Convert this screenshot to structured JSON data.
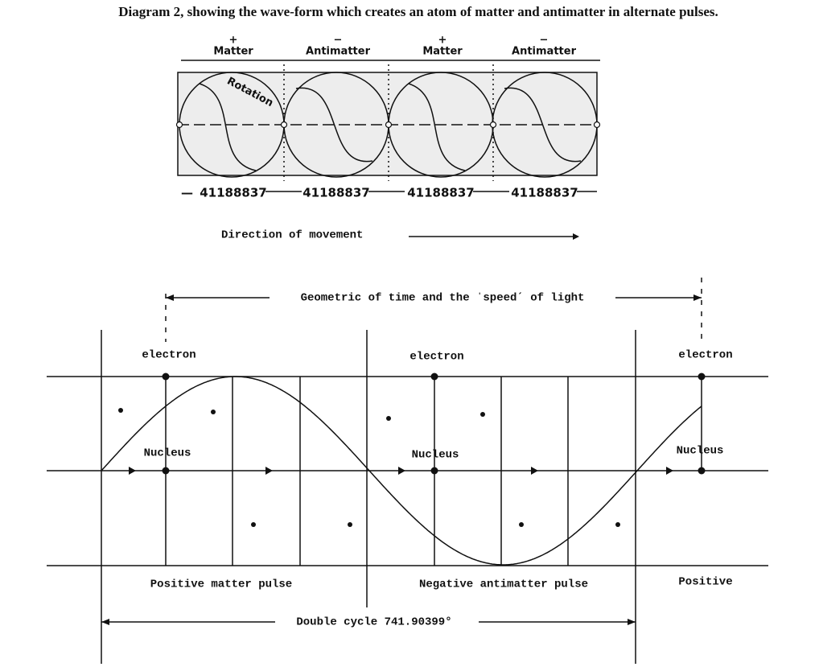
{
  "title": "Diagram 2, showing the wave-form which creates an atom of matter and antimatter in alternate pulses.",
  "top_diagram": {
    "segments": [
      {
        "sign": "+",
        "label": "Matter",
        "value": "41188837"
      },
      {
        "sign": "−",
        "label": "Antimatter",
        "value": "41188837"
      },
      {
        "sign": "+",
        "label": "Matter",
        "value": "41188837"
      },
      {
        "sign": "−",
        "label": "Antimatter",
        "value": "41188837"
      }
    ],
    "rotation_label": "Rotation",
    "direction_label": "Direction of movement"
  },
  "bottom_diagram": {
    "span_label": "Geometric of time and the ˈspeedˊ of light",
    "markers": [
      {
        "top": "electron",
        "middle": "Nucleus",
        "bottom": "Positive matter pulse"
      },
      {
        "top": "electron",
        "middle": "Nucleus",
        "bottom": "Negative antimatter pulse"
      },
      {
        "top": "electron",
        "middle": "Nucleus",
        "bottom": "Positive"
      }
    ],
    "cycle_label": "Double cycle 741.90399°"
  }
}
